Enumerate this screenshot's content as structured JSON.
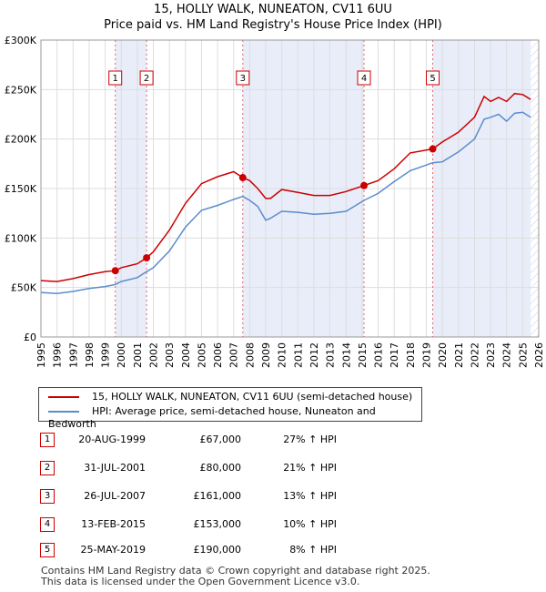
{
  "title_line1": "15, HOLLY WALK, NUNEATON, CV11 6UU",
  "title_line2": "Price paid vs. HM Land Registry's House Price Index (HPI)",
  "chart_data": {
    "type": "line",
    "title": "15, HOLLY WALK, NUNEATON, CV11 6UU — Price paid vs. HM Land Registry's House Price Index (HPI)",
    "xlim": [
      1995,
      2026
    ],
    "ylim": [
      0,
      300000
    ],
    "x_ticks": [
      1995,
      1996,
      1997,
      1998,
      1999,
      2000,
      2001,
      2002,
      2003,
      2004,
      2005,
      2006,
      2007,
      2008,
      2009,
      2010,
      2011,
      2012,
      2013,
      2014,
      2015,
      2016,
      2017,
      2018,
      2019,
      2020,
      2021,
      2022,
      2023,
      2024,
      2025,
      2026
    ],
    "y_ticks": [
      0,
      50000,
      100000,
      150000,
      200000,
      250000,
      300000
    ],
    "y_tick_labels": [
      "£0",
      "£50K",
      "£100K",
      "£150K",
      "£200K",
      "£250K",
      "£300K"
    ],
    "series": [
      {
        "name": "15, HOLLY WALK, NUNEATON, CV11 6UU (semi-detached house)",
        "color": "#cc0000",
        "x": [
          1995.0,
          1996.0,
          1997.0,
          1998.0,
          1999.0,
          1999.63,
          2000.0,
          2001.0,
          2001.58,
          2002.0,
          2003.0,
          2004.0,
          2005.0,
          2006.0,
          2007.0,
          2007.57,
          2008.0,
          2008.5,
          2009.0,
          2009.3,
          2010.0,
          2011.0,
          2012.0,
          2013.0,
          2014.0,
          2015.12,
          2016.0,
          2017.0,
          2018.0,
          2019.4,
          2020.0,
          2021.0,
          2022.0,
          2022.6,
          2023.0,
          2023.5,
          2024.0,
          2024.5,
          2025.0,
          2025.5
        ],
        "y": [
          57000,
          56000,
          59000,
          63000,
          66000,
          67000,
          70000,
          74000,
          80000,
          86000,
          108000,
          135000,
          155000,
          162000,
          167000,
          161000,
          158000,
          150000,
          140000,
          140000,
          149000,
          146000,
          143000,
          143000,
          147000,
          153000,
          158000,
          170000,
          186000,
          190000,
          197000,
          207000,
          222000,
          243000,
          238000,
          242000,
          238000,
          246000,
          245000,
          240000
        ]
      },
      {
        "name": "HPI: Average price, semi-detached house, Nuneaton and Bedworth",
        "color": "#5b8ccc",
        "x": [
          1995.0,
          1996.0,
          1997.0,
          1998.0,
          1999.0,
          1999.63,
          2000.0,
          2001.0,
          2001.58,
          2002.0,
          2003.0,
          2004.0,
          2005.0,
          2006.0,
          2007.0,
          2007.57,
          2008.0,
          2008.5,
          2009.0,
          2009.3,
          2010.0,
          2011.0,
          2012.0,
          2013.0,
          2014.0,
          2015.12,
          2016.0,
          2017.0,
          2018.0,
          2019.4,
          2020.0,
          2021.0,
          2022.0,
          2022.6,
          2023.0,
          2023.5,
          2024.0,
          2024.5,
          2025.0,
          2025.5
        ],
        "y": [
          45000,
          44000,
          46000,
          49000,
          51000,
          53000,
          56000,
          60000,
          66000,
          70000,
          87000,
          111000,
          128000,
          133000,
          139000,
          142000,
          138000,
          132000,
          118000,
          120000,
          127000,
          126000,
          124000,
          125000,
          127000,
          138000,
          145000,
          157000,
          168000,
          176000,
          177000,
          187000,
          200000,
          220000,
          222000,
          225000,
          218000,
          226000,
          227000,
          222000
        ]
      }
    ],
    "markers": [
      {
        "label": "1",
        "x": 1999.63,
        "y": 67000
      },
      {
        "label": "2",
        "x": 2001.58,
        "y": 80000
      },
      {
        "label": "3",
        "x": 2007.57,
        "y": 161000
      },
      {
        "label": "4",
        "x": 2015.12,
        "y": 153000
      },
      {
        "label": "5",
        "x": 2019.4,
        "y": 190000
      }
    ],
    "shaded_ranges": [
      [
        1999.63,
        2001.58
      ],
      [
        2007.57,
        2015.12
      ],
      [
        2019.4,
        2025.5
      ]
    ],
    "future_hatch_from": 2025.5
  },
  "legend": {
    "line1": "15, HOLLY WALK, NUNEATON, CV11 6UU (semi-detached house)",
    "line2": "HPI: Average price, semi-detached house, Nuneaton and Bedworth"
  },
  "transactions": [
    {
      "num": "1",
      "date": "20-AUG-1999",
      "price": "£67,000",
      "hpi": "27% ↑ HPI"
    },
    {
      "num": "2",
      "date": "31-JUL-2001",
      "price": "£80,000",
      "hpi": "21% ↑ HPI"
    },
    {
      "num": "3",
      "date": "26-JUL-2007",
      "price": "£161,000",
      "hpi": "13% ↑ HPI"
    },
    {
      "num": "4",
      "date": "13-FEB-2015",
      "price": "£153,000",
      "hpi": "10% ↑ HPI"
    },
    {
      "num": "5",
      "date": "25-MAY-2019",
      "price": "£190,000",
      "hpi": "8% ↑ HPI"
    }
  ],
  "footer": {
    "line1": "Contains HM Land Registry data © Crown copyright and database right 2025.",
    "line2": "This data is licensed under the Open Government Licence v3.0."
  }
}
